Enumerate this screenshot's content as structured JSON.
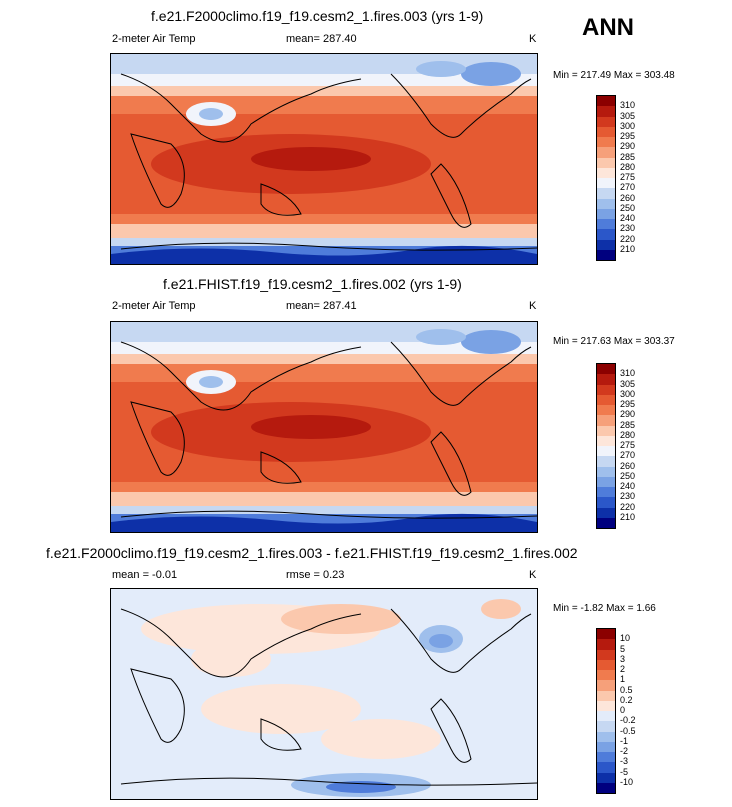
{
  "season": "ANN",
  "panels": [
    {
      "title": "f.e21.F2000climo.f19_f19.cesm2_1.fires.003 (yrs 1-9)",
      "left_label": "2-meter Air Temp",
      "mean_label": "mean= 287.40",
      "rmse_label": "",
      "units": "K",
      "minmax": "Min = 217.49 Max = 303.48",
      "colorbar_labels": [
        "310",
        "305",
        "300",
        "295",
        "290",
        "285",
        "280",
        "275",
        "270",
        "260",
        "250",
        "240",
        "230",
        "220",
        "210"
      ],
      "colorbar_colors": [
        "#8b0000",
        "#b51a0e",
        "#d2391e",
        "#e55a32",
        "#f07b4e",
        "#f6a07a",
        "#fbc8ad",
        "#fde6da",
        "#f1f4fb",
        "#c6d8f2",
        "#9fbfec",
        "#7aa2e4",
        "#4f7cda",
        "#2b57c9",
        "#0d30a8",
        "#00007f"
      ],
      "map_type": "temperature"
    },
    {
      "title": "f.e21.FHIST.f19_f19.cesm2_1.fires.002 (yrs 1-9)",
      "left_label": "2-meter Air Temp",
      "mean_label": "mean= 287.41",
      "rmse_label": "",
      "units": "K",
      "minmax": "Min = 217.63 Max = 303.37",
      "colorbar_labels": [
        "310",
        "305",
        "300",
        "295",
        "290",
        "285",
        "280",
        "275",
        "270",
        "260",
        "250",
        "240",
        "230",
        "220",
        "210"
      ],
      "colorbar_colors": [
        "#8b0000",
        "#b51a0e",
        "#d2391e",
        "#e55a32",
        "#f07b4e",
        "#f6a07a",
        "#fbc8ad",
        "#fde6da",
        "#f1f4fb",
        "#c6d8f2",
        "#9fbfec",
        "#7aa2e4",
        "#4f7cda",
        "#2b57c9",
        "#0d30a8",
        "#00007f"
      ],
      "map_type": "temperature"
    },
    {
      "title": "f.e21.F2000climo.f19_f19.cesm2_1.fires.003 - f.e21.FHIST.f19_f19.cesm2_1.fires.002",
      "left_label": "",
      "mean_label": "mean =  -0.01",
      "rmse_label": "rmse =   0.23",
      "units": "K",
      "minmax": "Min =  -1.82 Max =   1.66",
      "colorbar_labels": [
        "10",
        "5",
        "3",
        "2",
        "1",
        "0.5",
        "0.2",
        "0",
        "-0.2",
        "-0.5",
        "-1",
        "-2",
        "-3",
        "-5",
        "-10"
      ],
      "colorbar_colors": [
        "#8b0000",
        "#b51a0e",
        "#d2391e",
        "#e55a32",
        "#f07b4e",
        "#f6a07a",
        "#fbc8ad",
        "#fde6da",
        "#e3ecfa",
        "#c6d8f2",
        "#9fbfec",
        "#7aa2e4",
        "#4f7cda",
        "#2b57c9",
        "#0d30a8",
        "#00007f"
      ],
      "map_type": "difference"
    }
  ]
}
